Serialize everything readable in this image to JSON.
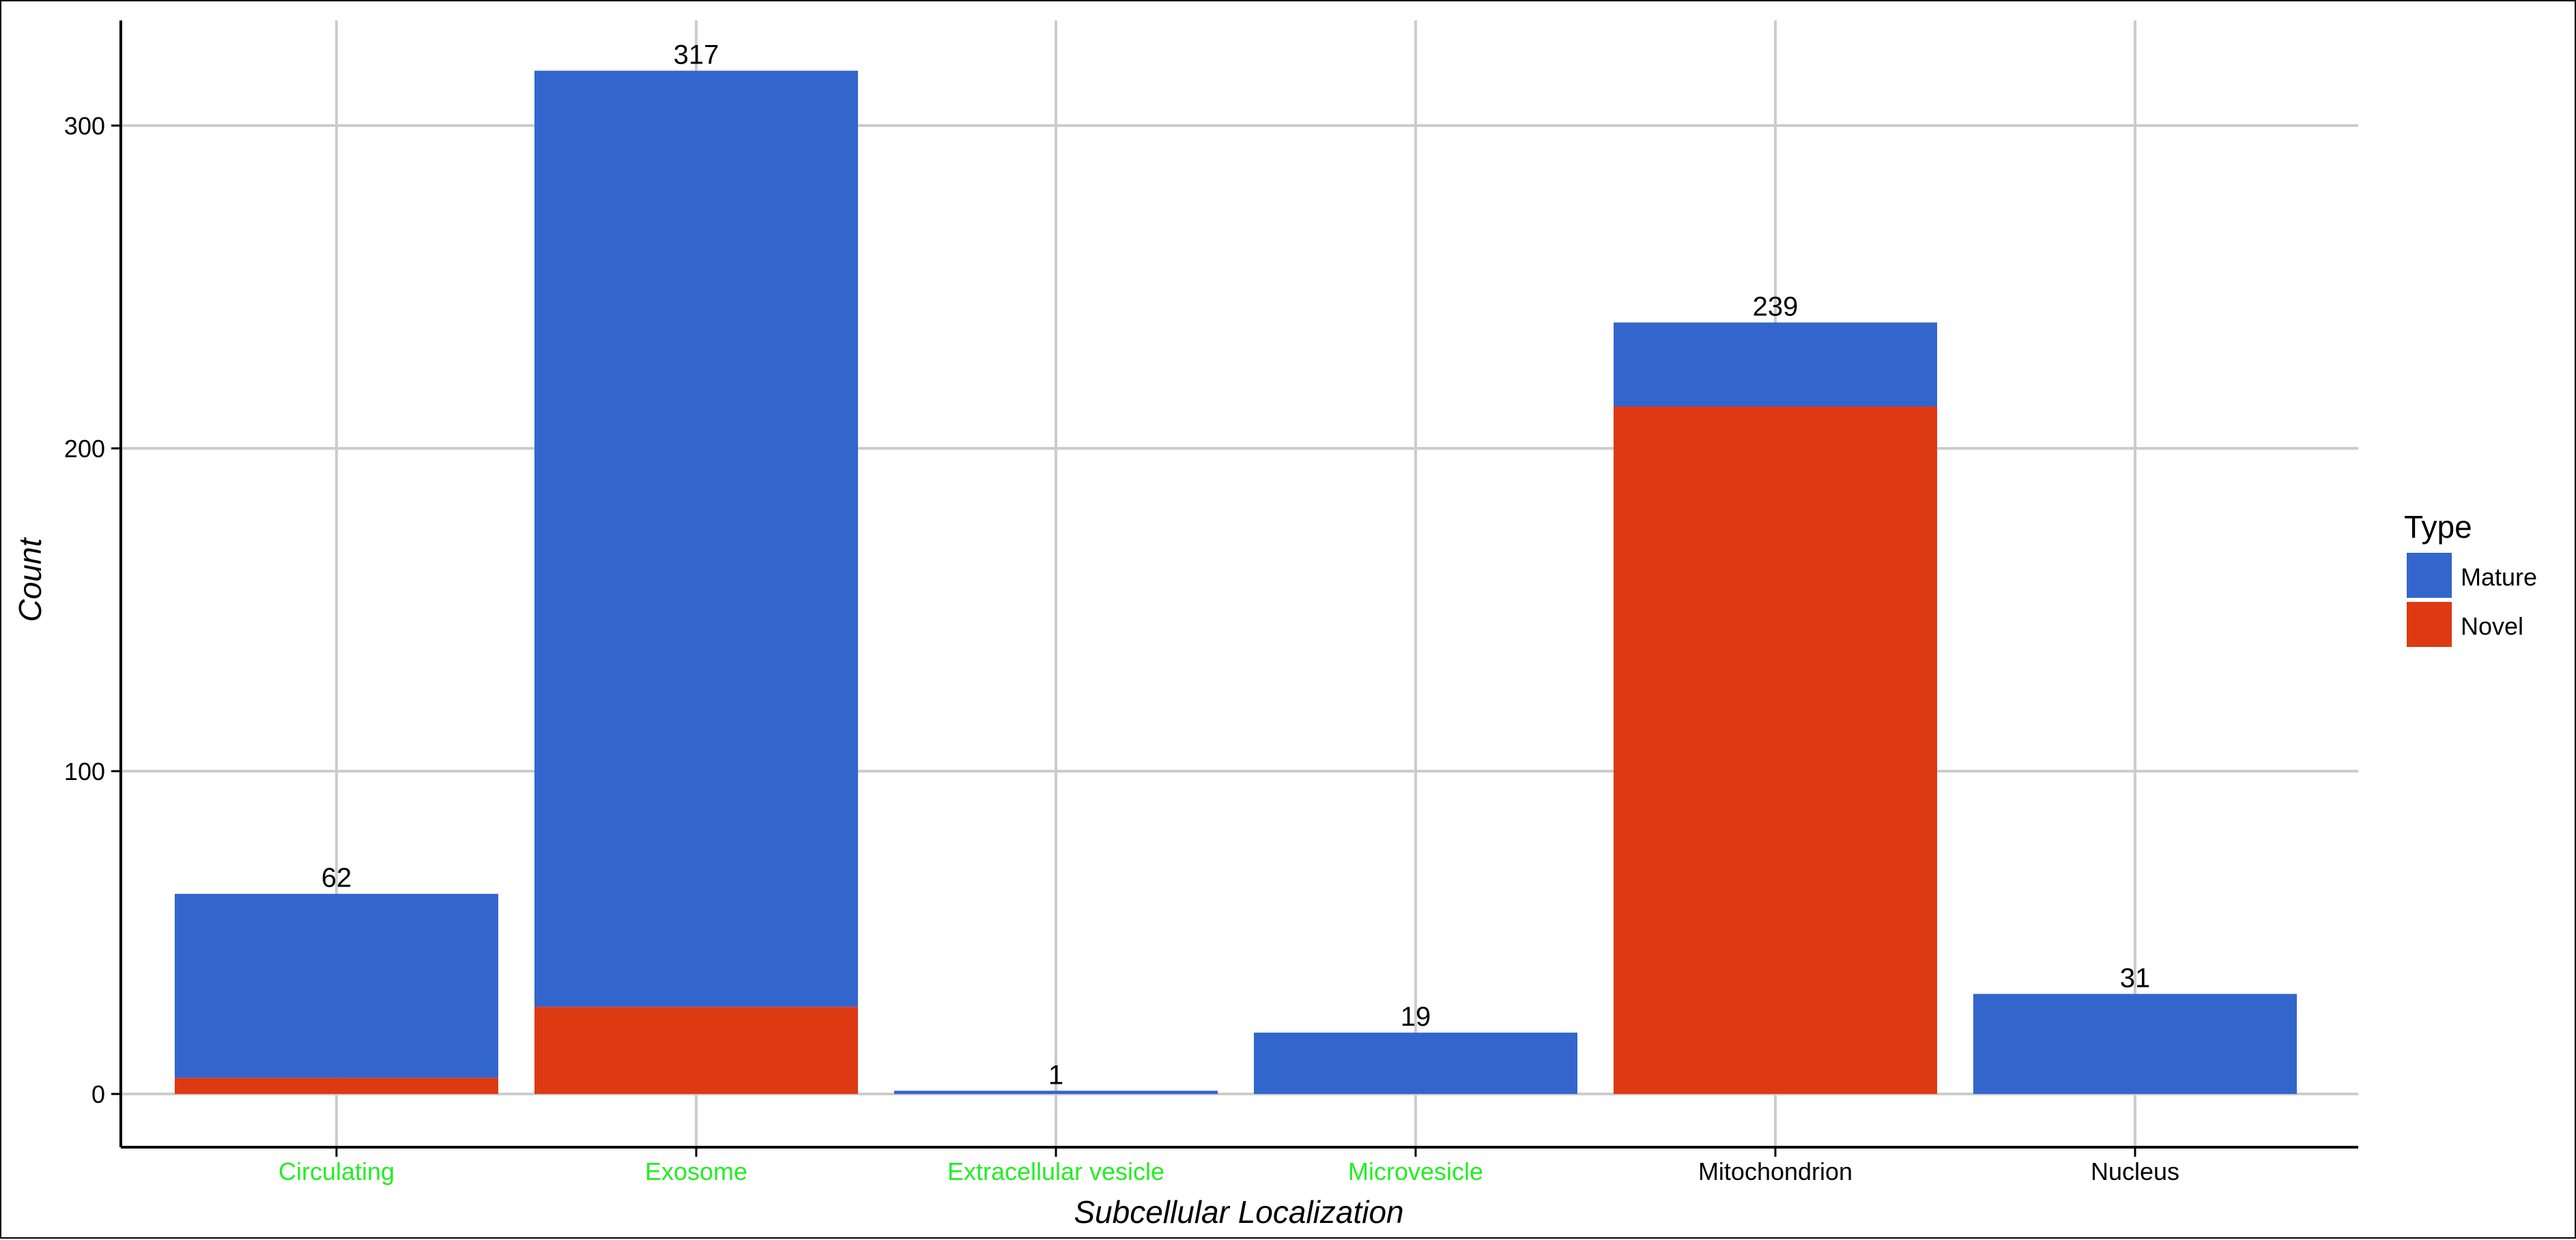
{
  "chart_data": {
    "type": "bar",
    "stacked": true,
    "title": "",
    "xlabel": "Subcellular Localization",
    "ylabel": "Count",
    "ylim": [
      -16.5,
      332
    ],
    "yticks": [
      0,
      100,
      200,
      300
    ],
    "grid": true,
    "categories": [
      "Circulating",
      "Exosome",
      "Extracellular vesicle",
      "Microvesicle",
      "Mitochondrion",
      "Nucleus"
    ],
    "category_colors": [
      "#22ee22",
      "#22ee22",
      "#22ee22",
      "#22ee22",
      "#000000",
      "#000000"
    ],
    "series": [
      {
        "name": "Novel",
        "color": "#dd3a14",
        "values": [
          5,
          27,
          0,
          0,
          213,
          0
        ]
      },
      {
        "name": "Mature",
        "color": "#3366cc",
        "values": [
          57,
          290,
          1,
          19,
          26,
          31
        ]
      }
    ],
    "totals": [
      62,
      317,
      1,
      19,
      239,
      31
    ],
    "total_labels": [
      "62",
      "317",
      "1",
      "19",
      "239",
      "31"
    ],
    "legend": {
      "title": "Type",
      "position": "right",
      "items": [
        {
          "label": "Mature",
          "color": "#3366cc"
        },
        {
          "label": "Novel",
          "color": "#dd3a14"
        }
      ]
    }
  }
}
